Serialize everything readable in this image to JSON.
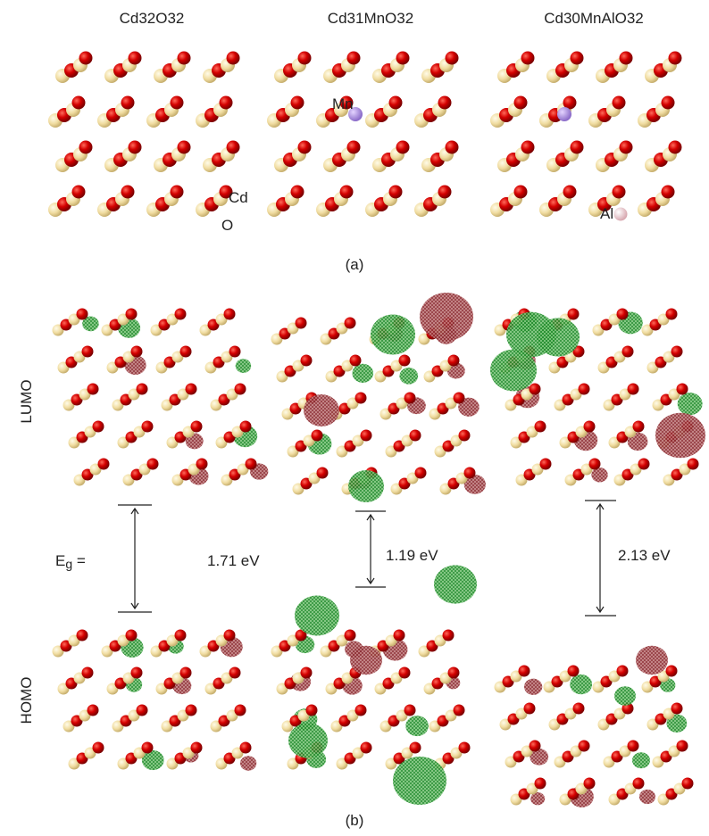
{
  "columns": [
    {
      "title": "Cd32O32"
    },
    {
      "title": "Cd31MnO32"
    },
    {
      "title": "Cd30MnAlO32"
    }
  ],
  "atom_labels": {
    "cd": "Cd",
    "o": "O",
    "mn": "Mn",
    "al": "Al"
  },
  "panel_a_label": "(a)",
  "panel_b_label": "(b)",
  "orbital_labels": {
    "lumo": "LUMO",
    "homo": "HOMO"
  },
  "gap_label": {
    "symbol": "E",
    "subscript": "g",
    "suffix": " ="
  },
  "gaps": [
    "1.71 eV",
    "1.19 eV",
    "2.13 eV"
  ]
}
